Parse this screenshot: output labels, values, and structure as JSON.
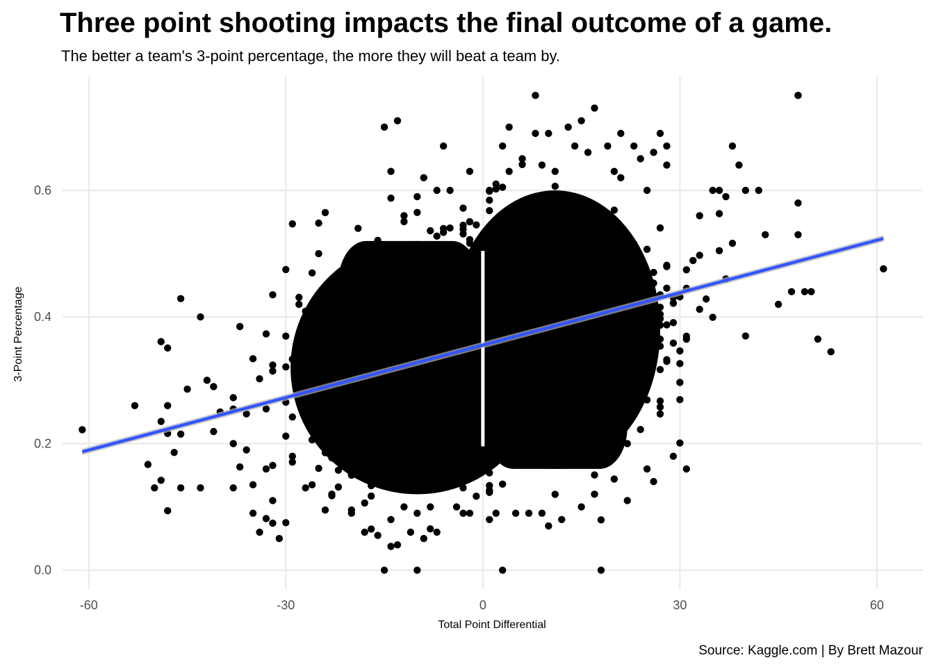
{
  "title": "Three point shooting impacts the final outcome of a game.",
  "subtitle": "The better a team's 3-point percentage, the more they will beat a team by.",
  "caption": "Source: Kaggle.com | By Brett Mazour",
  "colors": {
    "points": "#000000",
    "trend": "#3355ff",
    "ribbon": "#b3b3b3",
    "grid": "#ebebeb"
  },
  "chart_data": {
    "type": "scatter",
    "xlabel": "Total Point Differential",
    "ylabel": "3-Point Percentage",
    "xlim": [
      -64,
      67
    ],
    "ylim": [
      -0.03,
      0.78
    ],
    "x_ticks": [
      -60,
      -30,
      0,
      30,
      60
    ],
    "x_tick_labels": [
      "-60",
      "-30",
      "0",
      "30",
      "60"
    ],
    "y_ticks": [
      0.0,
      0.2,
      0.4,
      0.6
    ],
    "y_tick_labels": [
      "0.0",
      "0.2",
      "0.4",
      "0.6"
    ],
    "grid": true,
    "legend": "none",
    "trend_line": {
      "method": "linear",
      "x_start": -61,
      "y_start": 0.187,
      "x_end": 61,
      "y_end": 0.524,
      "se_band": 0.005
    },
    "points": [
      [
        -61,
        0.222
      ],
      [
        -53,
        0.26
      ],
      [
        -51,
        0.167
      ],
      [
        -50,
        0.13
      ],
      [
        -49,
        0.361
      ],
      [
        -49,
        0.142
      ],
      [
        -49,
        0.235
      ],
      [
        -48,
        0.351
      ],
      [
        -48,
        0.26
      ],
      [
        -48,
        0.094
      ],
      [
        -48,
        0.216
      ],
      [
        -47,
        0.186
      ],
      [
        -46,
        0.13
      ],
      [
        -46,
        0.429
      ],
      [
        -46,
        0.215
      ],
      [
        -45,
        0.286
      ],
      [
        -43,
        0.4
      ],
      [
        -43,
        0.13
      ],
      [
        -42,
        0.3
      ],
      [
        -41,
        0.219
      ],
      [
        -41,
        0.29
      ],
      [
        -40,
        0.25
      ],
      [
        -38,
        0.2
      ],
      [
        -38,
        0.13
      ],
      [
        -37,
        0.385
      ],
      [
        -36,
        0.19
      ],
      [
        -35,
        0.09
      ],
      [
        -35,
        0.135
      ],
      [
        -35,
        0.334
      ],
      [
        -34,
        0.06
      ],
      [
        -33,
        0.16
      ],
      [
        -32,
        0.11
      ],
      [
        -32,
        0.435
      ],
      [
        -31,
        0.05
      ],
      [
        -30,
        0.075
      ],
      [
        -30,
        0.475
      ],
      [
        -29,
        0.18
      ],
      [
        -28,
        0.42
      ],
      [
        -27,
        0.13
      ],
      [
        -26,
        0.135
      ],
      [
        -25,
        0.5
      ],
      [
        -24,
        0.565
      ],
      [
        -24,
        0.095
      ],
      [
        -23,
        0.12
      ],
      [
        -21,
        0.44
      ],
      [
        -20,
        0.09
      ],
      [
        -20,
        0.095
      ],
      [
        -19,
        0.54
      ],
      [
        -18,
        0.06
      ],
      [
        -17,
        0.065
      ],
      [
        -16,
        0.055
      ],
      [
        -15,
        0.0
      ],
      [
        -15,
        0.7
      ],
      [
        -14,
        0.63
      ],
      [
        -14,
        0.08
      ],
      [
        -13,
        0.04
      ],
      [
        -13,
        0.71
      ],
      [
        -12,
        0.56
      ],
      [
        -12,
        0.1
      ],
      [
        -11,
        0.06
      ],
      [
        -10,
        0.59
      ],
      [
        -10,
        0.0
      ],
      [
        -10,
        0.09
      ],
      [
        -9,
        0.62
      ],
      [
        -9,
        0.05
      ],
      [
        -8,
        0.1
      ],
      [
        -7,
        0.6
      ],
      [
        -7,
        0.06
      ],
      [
        -6,
        0.67
      ],
      [
        -5,
        0.6
      ],
      [
        -4,
        0.1
      ],
      [
        -3,
        0.09
      ],
      [
        -3,
        0.13
      ],
      [
        -2,
        0.63
      ],
      [
        -2,
        0.09
      ],
      [
        1,
        0.6
      ],
      [
        1,
        0.08
      ],
      [
        2,
        0.61
      ],
      [
        2,
        0.09
      ],
      [
        3,
        0.0
      ],
      [
        3,
        0.67
      ],
      [
        4,
        0.7
      ],
      [
        4,
        0.63
      ],
      [
        5,
        0.09
      ],
      [
        6,
        0.65
      ],
      [
        7,
        0.09
      ],
      [
        8,
        0.75
      ],
      [
        8,
        0.69
      ],
      [
        9,
        0.64
      ],
      [
        9,
        0.09
      ],
      [
        10,
        0.69
      ],
      [
        10,
        0.07
      ],
      [
        11,
        0.63
      ],
      [
        12,
        0.08
      ],
      [
        13,
        0.7
      ],
      [
        14,
        0.67
      ],
      [
        15,
        0.71
      ],
      [
        15,
        0.1
      ],
      [
        16,
        0.66
      ],
      [
        17,
        0.73
      ],
      [
        17,
        0.12
      ],
      [
        18,
        0.0
      ],
      [
        19,
        0.67
      ],
      [
        20,
        0.63
      ],
      [
        21,
        0.62
      ],
      [
        21,
        0.69
      ],
      [
        22,
        0.11
      ],
      [
        22,
        0.2
      ],
      [
        23,
        0.67
      ],
      [
        24,
        0.65
      ],
      [
        25,
        0.6
      ],
      [
        25,
        0.16
      ],
      [
        26,
        0.66
      ],
      [
        26,
        0.14
      ],
      [
        27,
        0.69
      ],
      [
        28,
        0.67
      ],
      [
        28,
        0.64
      ],
      [
        29,
        0.18
      ],
      [
        31,
        0.16
      ],
      [
        33,
        0.56
      ],
      [
        35,
        0.6
      ],
      [
        36,
        0.6
      ],
      [
        37,
        0.59
      ],
      [
        38,
        0.67
      ],
      [
        39,
        0.64
      ],
      [
        40,
        0.37
      ],
      [
        40,
        0.6
      ],
      [
        42,
        0.6
      ],
      [
        43,
        0.53
      ],
      [
        45,
        0.42
      ],
      [
        47,
        0.44
      ],
      [
        48,
        0.75
      ],
      [
        48,
        0.75
      ],
      [
        48,
        0.58
      ],
      [
        48,
        0.53
      ],
      [
        49,
        0.44
      ],
      [
        50,
        0.44
      ],
      [
        51,
        0.365
      ],
      [
        53,
        0.345
      ],
      [
        61,
        0.476
      ]
    ]
  }
}
